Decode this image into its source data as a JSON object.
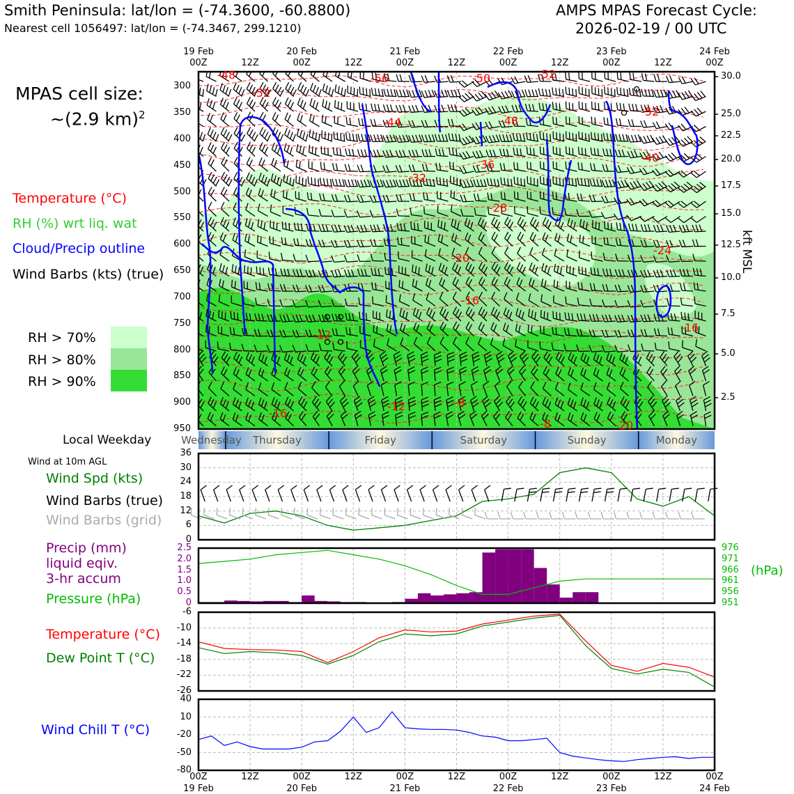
{
  "header": {
    "location": "Smith Peninsula: lat/lon = (-74.3600, -60.8800)",
    "nearest": "Nearest cell 1056497: lat/lon = (-74.3467, 299.1210)",
    "model_title": "AMPS MPAS Forecast Cycle:",
    "cycle": "2026-02-19 / 00 UTC"
  },
  "cell_size": {
    "line1": "MPAS cell size:",
    "line2": "~(2.9 km)",
    "sup": "2"
  },
  "legend_upper": {
    "temp": "Temperature (°C)",
    "rh": "RH (%) wrt liq. wat",
    "cloud": "Cloud/Precip outline",
    "wind": "Wind Barbs (kts) (true)",
    "rh70": "RH > 70%",
    "rh80": "RH > 80%",
    "rh90": "RH > 90%"
  },
  "colors": {
    "temp": "#ff0000",
    "rh": "#33cc33",
    "cloud": "#0000ff",
    "rh70": "#ccffcc",
    "rh80": "#99e699",
    "rh90": "#33dd33",
    "precip": "#800080",
    "pressure": "#00bb00",
    "dew": "#008000",
    "wind_spd": "#008000",
    "wind_grid": "#aaaaaa",
    "chill": "#0000ff"
  },
  "time_axis": {
    "top_dates": [
      "19 Feb",
      "",
      "20 Feb",
      "",
      "21 Feb",
      "",
      "22 Feb",
      "",
      "23 Feb",
      "",
      "24 Feb"
    ],
    "top_hours": [
      "00Z",
      "12Z",
      "00Z",
      "12Z",
      "00Z",
      "12Z",
      "00Z",
      "12Z",
      "00Z",
      "12Z",
      "00Z"
    ],
    "bottom_hours": [
      "00Z",
      "12Z",
      "00Z",
      "12Z",
      "00Z",
      "12Z",
      "00Z",
      "12Z",
      "00Z",
      "12Z",
      "00Z"
    ],
    "bottom_dates": [
      "19 Feb",
      "",
      "20 Feb",
      "",
      "21 Feb",
      "",
      "22 Feb",
      "",
      "23 Feb",
      "",
      "24 Feb"
    ]
  },
  "weekday": {
    "label": "Local Weekday",
    "days": [
      "Wednesday",
      "Thursday",
      "Friday",
      "Saturday",
      "Sunday",
      "Monday"
    ]
  },
  "pressure_axis": {
    "ticks": [
      "300",
      "350",
      "400",
      "450",
      "500",
      "550",
      "600",
      "650",
      "700",
      "750",
      "800",
      "850",
      "900",
      "950"
    ],
    "right_ticks": [
      "30.0",
      "25.0",
      "22.5",
      "20.0",
      "17.5",
      "15.0",
      "12.5",
      "10.0",
      "7.5",
      "5.0",
      "2.5"
    ],
    "right_label": "kft MSL"
  },
  "temp_labels": [
    "-48",
    "-52",
    "-56",
    "-50",
    "-52",
    "-44",
    "-48",
    "-52",
    "-40",
    "-36",
    "-32",
    "-28",
    "-24",
    "-20",
    "-16",
    "-16",
    "-12",
    "-12",
    "-8",
    "-16",
    "-8",
    "-20"
  ],
  "wind_panel": {
    "title": "Wind at 10m AGL",
    "spd": "Wind Spd (kts)",
    "barbs": "Wind Barbs (true)",
    "grid": "Wind Barbs (grid)",
    "yticks": [
      "36",
      "30",
      "24",
      "18",
      "12",
      "6",
      "0"
    ]
  },
  "precip_panel": {
    "precip": "Precip (mm)",
    "liquid": "liquid eqiv.",
    "accum": "3-hr accum",
    "pressure": "Pressure (hPa)",
    "yticks": [
      "2.5",
      "2.0",
      "1.5",
      "1.0",
      "0.5",
      "0"
    ],
    "right_ticks": [
      "976",
      "971",
      "966",
      "961",
      "956",
      "951"
    ],
    "right_label": "(hPa)"
  },
  "temp_panel": {
    "temp": "Temperature (°C)",
    "dew": "Dew Point T (°C)",
    "yticks": [
      "-6",
      "-10",
      "-14",
      "-18",
      "-22",
      "-26"
    ]
  },
  "chill_panel": {
    "label": "Wind Chill T (°C)",
    "yticks": [
      "40",
      "10",
      "-20",
      "-50",
      "-80"
    ]
  },
  "chart_data": [
    {
      "type": "line",
      "title": "Wind at 10m AGL",
      "ylabel": "Wind Spd (kts)",
      "ylim": [
        0,
        36
      ],
      "x_hours": [
        0,
        6,
        12,
        18,
        24,
        30,
        36,
        42,
        48,
        54,
        60,
        66,
        72,
        78,
        84,
        90,
        96,
        102,
        108,
        114,
        120
      ],
      "series": [
        {
          "name": "Wind Spd (kts)",
          "values": [
            10,
            7,
            11,
            12,
            10,
            6,
            4,
            5,
            6,
            8,
            10,
            16,
            17,
            19,
            28,
            30,
            28,
            17,
            14,
            18,
            10
          ]
        }
      ]
    },
    {
      "type": "bar",
      "title": "Precip (mm) liquid eqiv. 3-hr accum",
      "ylim": [
        0,
        2.5
      ],
      "x_hours": [
        0,
        3,
        6,
        9,
        12,
        15,
        18,
        21,
        24,
        27,
        30,
        33,
        36,
        39,
        42,
        45,
        48,
        51,
        54,
        57,
        60,
        63,
        66,
        69,
        72,
        75,
        78,
        81,
        84,
        87,
        90,
        93,
        96,
        99,
        102,
        105,
        108,
        111,
        114,
        117
      ],
      "values": [
        0.05,
        0.05,
        0.12,
        0.1,
        0.08,
        0.1,
        0.1,
        0.05,
        0.35,
        0.1,
        0.08,
        0.05,
        0.05,
        0,
        0,
        0.05,
        0.2,
        0.45,
        0.35,
        0.4,
        0.45,
        0.5,
        2.3,
        2.45,
        2.45,
        2.45,
        1.6,
        0.85,
        0.25,
        0.5,
        0.5,
        0,
        0,
        0,
        0,
        0,
        0,
        0,
        0,
        0
      ],
      "series": [
        {
          "name": "Pressure (hPa)",
          "ylim": [
            951,
            976
          ],
          "values": [
            969,
            970,
            971,
            973,
            974,
            975,
            973,
            971,
            968,
            964,
            959,
            955,
            955,
            958,
            961,
            962,
            962,
            962,
            962,
            962,
            962
          ]
        }
      ]
    },
    {
      "type": "line",
      "title": "Temperature / Dew Point",
      "ylim": [
        -26,
        -6
      ],
      "x_hours": [
        0,
        6,
        12,
        18,
        24,
        30,
        36,
        42,
        48,
        54,
        60,
        66,
        72,
        78,
        84,
        90,
        96,
        102,
        108,
        114,
        120
      ],
      "series": [
        {
          "name": "Temperature (°C)",
          "values": [
            -13.5,
            -15.2,
            -15.5,
            -15.6,
            -16,
            -18.8,
            -16,
            -12.5,
            -10.5,
            -11,
            -10.8,
            -9,
            -8,
            -7,
            -6.5,
            -13.3,
            -19.5,
            -21,
            -19,
            -20,
            -22.5
          ]
        },
        {
          "name": "Dew Point T (°C)",
          "values": [
            -15,
            -16.5,
            -16,
            -16.3,
            -17,
            -19.2,
            -17,
            -13.5,
            -11.5,
            -12,
            -11.5,
            -9.5,
            -8.5,
            -7.5,
            -6.8,
            -14.5,
            -20.3,
            -21.7,
            -20.5,
            -21.3,
            -25
          ]
        }
      ]
    },
    {
      "type": "line",
      "title": "Wind Chill T (°C)",
      "ylim": [
        -80,
        40
      ],
      "x_hours": [
        0,
        3,
        6,
        9,
        12,
        15,
        18,
        21,
        24,
        27,
        30,
        33,
        36,
        39,
        42,
        45,
        48,
        51,
        54,
        57,
        60,
        63,
        66,
        69,
        72,
        75,
        78,
        81,
        84,
        87,
        90,
        93,
        96,
        99,
        102,
        105,
        108,
        111,
        114,
        117,
        120
      ],
      "series": [
        {
          "name": "Wind Chill T (°C)",
          "values": [
            -28,
            -22,
            -38,
            -32,
            -40,
            -44,
            -44,
            -44,
            -41,
            -32,
            -30,
            -14,
            10,
            -16,
            -8,
            19,
            -8,
            -10,
            -11,
            -11,
            -12,
            -16,
            -22,
            -24,
            -30,
            -30,
            -28,
            -26,
            -50,
            -56,
            -59,
            -62,
            -64,
            -65,
            -62,
            -60,
            -58,
            -57,
            -60,
            -58,
            -58
          ]
        }
      ]
    }
  ]
}
